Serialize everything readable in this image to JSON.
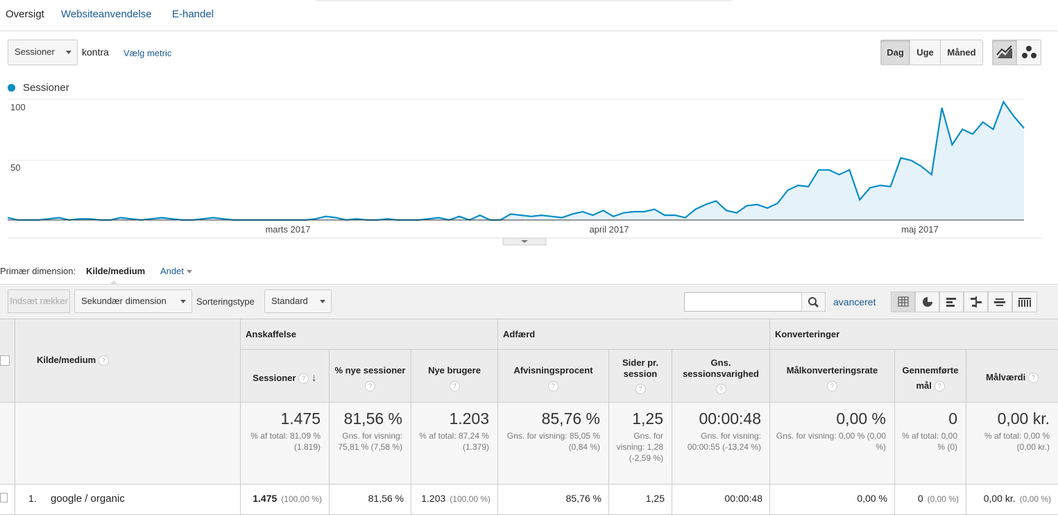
{
  "tabs": [
    "Oversigt",
    "Websiteanvendelse",
    "E-handel"
  ],
  "metric": {
    "selected": "Sessioner",
    "versus": "kontra",
    "choose": "Vælg metric"
  },
  "period": {
    "day": "Dag",
    "week": "Uge",
    "month": "Måned"
  },
  "chart_data": {
    "type": "area",
    "legend": "Sessioner",
    "color": "#058dc7",
    "y_ticks": [
      "100",
      "50"
    ],
    "ylim": [
      0,
      100
    ],
    "x_labels": [
      "marts 2017",
      "april 2017",
      "maj 2017"
    ],
    "values": [
      2,
      0,
      0,
      0,
      1,
      2,
      0,
      1,
      1,
      0,
      0,
      2,
      1,
      0,
      1,
      2,
      1,
      0,
      0,
      1,
      2,
      1,
      0,
      0,
      0,
      0,
      0,
      0,
      0,
      0,
      1,
      3,
      2,
      0,
      1,
      0,
      0,
      1,
      0,
      0,
      0,
      1,
      2,
      0,
      3,
      0,
      4,
      0,
      0,
      5,
      4,
      3,
      4,
      3,
      2,
      5,
      7,
      4,
      8,
      3,
      6,
      7,
      7,
      9,
      4,
      4,
      2,
      9,
      13,
      16,
      8,
      6,
      12,
      13,
      10,
      14,
      25,
      29,
      28,
      42,
      42,
      38,
      42,
      17,
      27,
      29,
      28,
      52,
      50,
      45,
      38,
      94,
      63,
      76,
      72,
      82,
      76,
      99,
      87,
      77
    ]
  },
  "dimension": {
    "label": "Primær dimension:",
    "value": "Kilde/medium",
    "other": "Andet"
  },
  "toolbar": {
    "insert": "Indsæt rækker",
    "secondary": "Sekundær dimension",
    "sort_label": "Sorteringstype",
    "sort_value": "Standard",
    "advanced": "avanceret"
  },
  "table": {
    "dim_header": "Kilde/medium",
    "groups": [
      "Anskaffelse",
      "Adfærd",
      "Konverteringer"
    ],
    "columns": [
      "Sessioner",
      "% nye sessioner",
      "Nye brugere",
      "Afvisningsprocent",
      "Sider pr. session",
      "Gns. sessionsvarighed",
      "Målkonverteringsrate",
      "Gennemførte mål",
      "Målværdi"
    ],
    "totals": [
      {
        "big": "1.475",
        "sub": "% af total: 81,09 % (1.819)"
      },
      {
        "big": "81,56 %",
        "sub": "Gns. for visning: 75,81 % (7,58 %)"
      },
      {
        "big": "1.203",
        "sub": "% af total: 87,24 % (1.379)"
      },
      {
        "big": "85,76 %",
        "sub": "Gns. for visning: 85,05 % (0,84 %)"
      },
      {
        "big": "1,25",
        "sub": "Gns. for visning: 1,28 (-2,59 %)"
      },
      {
        "big": "00:00:48",
        "sub": "Gns. for visning: 00:00:55 (-13,24 %)"
      },
      {
        "big": "0,00 %",
        "sub": "Gns. for visning: 0,00 % (0,00 %)"
      },
      {
        "big": "0",
        "sub": "% af total: 0,00 % (0)"
      },
      {
        "big": "0,00 kr.",
        "sub": "% af total: 0,00 % (0,00 kr.)"
      }
    ],
    "rows": [
      {
        "index": "1.",
        "name": "google / organic",
        "cells": [
          {
            "v": "1.475",
            "p": "(100,00 %)"
          },
          {
            "v": "81,56 %",
            "p": ""
          },
          {
            "v": "1.203",
            "p": "(100,00 %)"
          },
          {
            "v": "85,76 %",
            "p": ""
          },
          {
            "v": "1,25",
            "p": ""
          },
          {
            "v": "00:00:48",
            "p": ""
          },
          {
            "v": "0,00 %",
            "p": ""
          },
          {
            "v": "0",
            "p": "(0,00 %)"
          },
          {
            "v": "0,00 kr.",
            "p": "(0,00 %)"
          }
        ]
      }
    ]
  }
}
